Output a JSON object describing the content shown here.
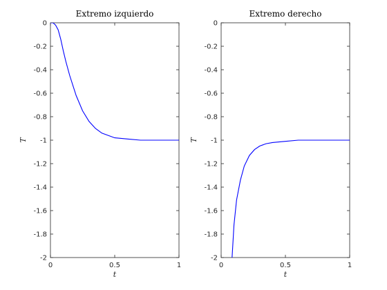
{
  "chart_data": [
    {
      "type": "line",
      "title": "Extremo izquierdo",
      "xlabel": "t",
      "ylabel": "T",
      "xlim": [
        0,
        1
      ],
      "ylim": [
        -2,
        0
      ],
      "xticks": [
        "0",
        "0.5",
        "1"
      ],
      "yticks": [
        "0",
        "-0.2",
        "-0.4",
        "-0.6",
        "-0.8",
        "-1",
        "-1.2",
        "-1.4",
        "-1.6",
        "-1.8",
        "-2"
      ],
      "grid": false,
      "color": "#0000ff",
      "series": [
        {
          "x": [
            0,
            0.02,
            0.04,
            0.06,
            0.08,
            0.1,
            0.12,
            0.15,
            0.2,
            0.25,
            0.3,
            0.35,
            0.4,
            0.5,
            0.6,
            0.7,
            0.8,
            1.0
          ],
          "values": [
            0,
            0,
            -0.02,
            -0.06,
            -0.14,
            -0.24,
            -0.33,
            -0.45,
            -0.62,
            -0.75,
            -0.84,
            -0.9,
            -0.94,
            -0.98,
            -0.99,
            -1.0,
            -1.0,
            -1.0
          ]
        }
      ]
    },
    {
      "type": "line",
      "title": "Extremo derecho",
      "xlabel": "t",
      "ylabel": "T",
      "xlim": [
        0,
        1
      ],
      "ylim": [
        -2,
        0
      ],
      "xticks": [
        "0",
        "0.5",
        "1"
      ],
      "yticks": [
        "0",
        "-0.2",
        "-0.4",
        "-0.6",
        "-0.8",
        "-1",
        "-1.2",
        "-1.4",
        "-1.6",
        "-1.8",
        "-2"
      ],
      "grid": false,
      "color": "#0000ff",
      "series": [
        {
          "x": [
            0.085,
            0.1,
            0.12,
            0.15,
            0.18,
            0.22,
            0.26,
            0.3,
            0.35,
            0.4,
            0.5,
            0.6,
            0.7,
            0.8,
            1.0
          ],
          "values": [
            -2.0,
            -1.72,
            -1.51,
            -1.34,
            -1.22,
            -1.13,
            -1.08,
            -1.05,
            -1.03,
            -1.02,
            -1.01,
            -1.0,
            -1.0,
            -1.0,
            -1.0
          ]
        }
      ]
    }
  ]
}
